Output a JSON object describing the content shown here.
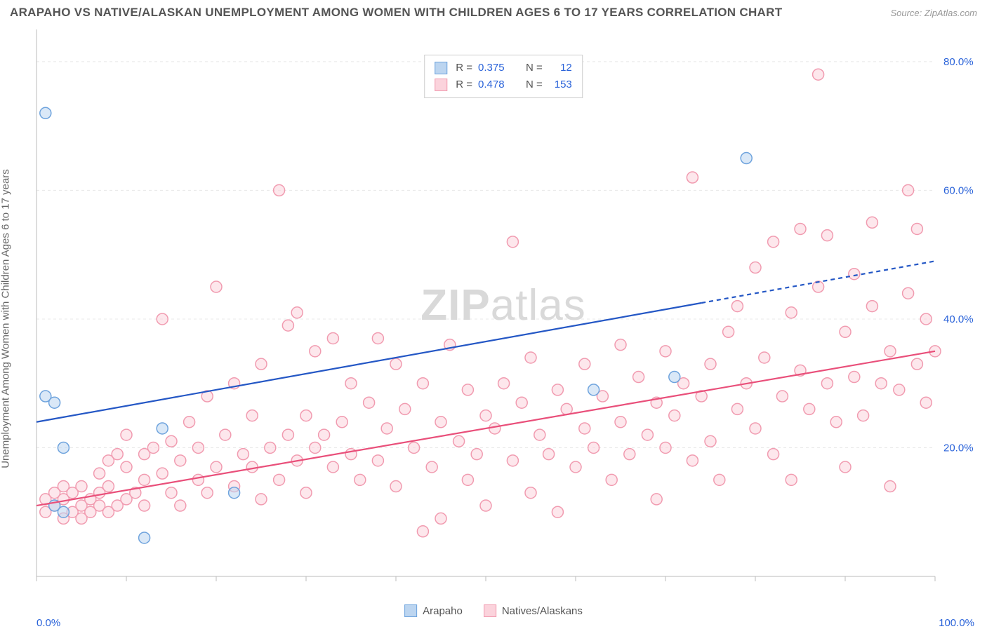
{
  "title": "ARAPAHO VS NATIVE/ALASKAN UNEMPLOYMENT AMONG WOMEN WITH CHILDREN AGES 6 TO 17 YEARS CORRELATION CHART",
  "source": "Source: ZipAtlas.com",
  "ylabel": "Unemployment Among Women with Children Ages 6 to 17 years",
  "watermark": {
    "bold": "ZIP",
    "light": "atlas"
  },
  "chart": {
    "type": "scatter",
    "xlim": [
      0,
      100
    ],
    "ylim": [
      0,
      85
    ],
    "y_ticks": [
      20,
      40,
      60,
      80
    ],
    "y_tick_labels": [
      "20.0%",
      "40.0%",
      "60.0%",
      "80.0%"
    ],
    "x_axis_labels": {
      "left": "0.0%",
      "right": "100.0%"
    },
    "x_minor_tick_step": 10,
    "grid_color": "#e8e8e8",
    "axis_color": "#bbbbbb",
    "tick_color": "#bbbbbb",
    "y_tick_label_color": "#2962d9",
    "x_axis_label_color": "#2962d9",
    "background_color": "#ffffff",
    "marker_radius": 8,
    "marker_stroke_width": 1.5,
    "trend_line_width": 2.2,
    "series": [
      {
        "name": "Arapaho",
        "fill": "#bcd5f0",
        "stroke": "#6ea3dd",
        "trend_color": "#2457c5",
        "r_value": "0.375",
        "n_value": "12",
        "trend": {
          "x1": 0,
          "y1": 24,
          "x2": 100,
          "y2": 49,
          "solid_until_x": 74
        },
        "points": [
          [
            1,
            72
          ],
          [
            1,
            28
          ],
          [
            2,
            27
          ],
          [
            3,
            20
          ],
          [
            3,
            10
          ],
          [
            2,
            11
          ],
          [
            14,
            23
          ],
          [
            12,
            6
          ],
          [
            22,
            13
          ],
          [
            62,
            29
          ],
          [
            71,
            31
          ],
          [
            79,
            65
          ]
        ]
      },
      {
        "name": "Natives/Alaskans",
        "fill": "#fbd3dc",
        "stroke": "#f19bb0",
        "trend_color": "#e94f7a",
        "r_value": "0.478",
        "n_value": "153",
        "trend": {
          "x1": 0,
          "y1": 11,
          "x2": 100,
          "y2": 35,
          "solid_until_x": 100
        },
        "points": [
          [
            1,
            12
          ],
          [
            1,
            10
          ],
          [
            2,
            11
          ],
          [
            2,
            13
          ],
          [
            3,
            9
          ],
          [
            3,
            12
          ],
          [
            3,
            14
          ],
          [
            4,
            10
          ],
          [
            4,
            13
          ],
          [
            5,
            11
          ],
          [
            5,
            9
          ],
          [
            5,
            14
          ],
          [
            6,
            12
          ],
          [
            6,
            10
          ],
          [
            7,
            13
          ],
          [
            7,
            11
          ],
          [
            7,
            16
          ],
          [
            8,
            10
          ],
          [
            8,
            14
          ],
          [
            8,
            18
          ],
          [
            9,
            11
          ],
          [
            9,
            19
          ],
          [
            10,
            12
          ],
          [
            10,
            17
          ],
          [
            10,
            22
          ],
          [
            11,
            13
          ],
          [
            12,
            19
          ],
          [
            12,
            15
          ],
          [
            12,
            11
          ],
          [
            13,
            20
          ],
          [
            14,
            16
          ],
          [
            14,
            40
          ],
          [
            15,
            13
          ],
          [
            15,
            21
          ],
          [
            16,
            18
          ],
          [
            16,
            11
          ],
          [
            17,
            24
          ],
          [
            18,
            15
          ],
          [
            18,
            20
          ],
          [
            19,
            13
          ],
          [
            19,
            28
          ],
          [
            20,
            17
          ],
          [
            20,
            45
          ],
          [
            21,
            22
          ],
          [
            22,
            14
          ],
          [
            22,
            30
          ],
          [
            23,
            19
          ],
          [
            24,
            17
          ],
          [
            24,
            25
          ],
          [
            25,
            12
          ],
          [
            25,
            33
          ],
          [
            26,
            20
          ],
          [
            27,
            60
          ],
          [
            27,
            15
          ],
          [
            28,
            39
          ],
          [
            28,
            22
          ],
          [
            29,
            18
          ],
          [
            29,
            41
          ],
          [
            30,
            25
          ],
          [
            30,
            13
          ],
          [
            31,
            35
          ],
          [
            31,
            20
          ],
          [
            32,
            22
          ],
          [
            33,
            17
          ],
          [
            33,
            37
          ],
          [
            34,
            24
          ],
          [
            35,
            19
          ],
          [
            35,
            30
          ],
          [
            36,
            15
          ],
          [
            37,
            27
          ],
          [
            38,
            37
          ],
          [
            38,
            18
          ],
          [
            39,
            23
          ],
          [
            40,
            33
          ],
          [
            40,
            14
          ],
          [
            41,
            26
          ],
          [
            42,
            20
          ],
          [
            43,
            30
          ],
          [
            43,
            7
          ],
          [
            44,
            17
          ],
          [
            45,
            24
          ],
          [
            45,
            9
          ],
          [
            46,
            36
          ],
          [
            47,
            21
          ],
          [
            48,
            15
          ],
          [
            48,
            29
          ],
          [
            49,
            19
          ],
          [
            50,
            25
          ],
          [
            50,
            11
          ],
          [
            51,
            23
          ],
          [
            52,
            30
          ],
          [
            53,
            18
          ],
          [
            53,
            52
          ],
          [
            54,
            27
          ],
          [
            55,
            13
          ],
          [
            55,
            34
          ],
          [
            56,
            22
          ],
          [
            57,
            19
          ],
          [
            58,
            29
          ],
          [
            58,
            10
          ],
          [
            59,
            26
          ],
          [
            60,
            17
          ],
          [
            61,
            33
          ],
          [
            61,
            23
          ],
          [
            62,
            20
          ],
          [
            63,
            28
          ],
          [
            64,
            15
          ],
          [
            65,
            36
          ],
          [
            65,
            24
          ],
          [
            66,
            19
          ],
          [
            67,
            31
          ],
          [
            68,
            22
          ],
          [
            69,
            27
          ],
          [
            69,
            12
          ],
          [
            70,
            35
          ],
          [
            70,
            20
          ],
          [
            71,
            25
          ],
          [
            72,
            30
          ],
          [
            73,
            62
          ],
          [
            73,
            18
          ],
          [
            74,
            28
          ],
          [
            75,
            33
          ],
          [
            75,
            21
          ],
          [
            76,
            15
          ],
          [
            77,
            38
          ],
          [
            78,
            26
          ],
          [
            78,
            42
          ],
          [
            79,
            30
          ],
          [
            80,
            23
          ],
          [
            80,
            48
          ],
          [
            81,
            34
          ],
          [
            82,
            19
          ],
          [
            82,
            52
          ],
          [
            83,
            28
          ],
          [
            84,
            41
          ],
          [
            84,
            15
          ],
          [
            85,
            32
          ],
          [
            85,
            54
          ],
          [
            86,
            26
          ],
          [
            87,
            45
          ],
          [
            87,
            78
          ],
          [
            88,
            30
          ],
          [
            88,
            53
          ],
          [
            89,
            24
          ],
          [
            90,
            38
          ],
          [
            90,
            17
          ],
          [
            91,
            47
          ],
          [
            91,
            31
          ],
          [
            92,
            25
          ],
          [
            93,
            42
          ],
          [
            93,
            55
          ],
          [
            94,
            30
          ],
          [
            95,
            35
          ],
          [
            95,
            14
          ],
          [
            96,
            29
          ],
          [
            97,
            44
          ],
          [
            97,
            60
          ],
          [
            98,
            33
          ],
          [
            98,
            54
          ],
          [
            99,
            40
          ],
          [
            99,
            27
          ],
          [
            100,
            35
          ]
        ]
      }
    ]
  },
  "legend_bottom": [
    {
      "label": "Arapaho",
      "series_index": 0
    },
    {
      "label": "Natives/Alaskans",
      "series_index": 1
    }
  ]
}
